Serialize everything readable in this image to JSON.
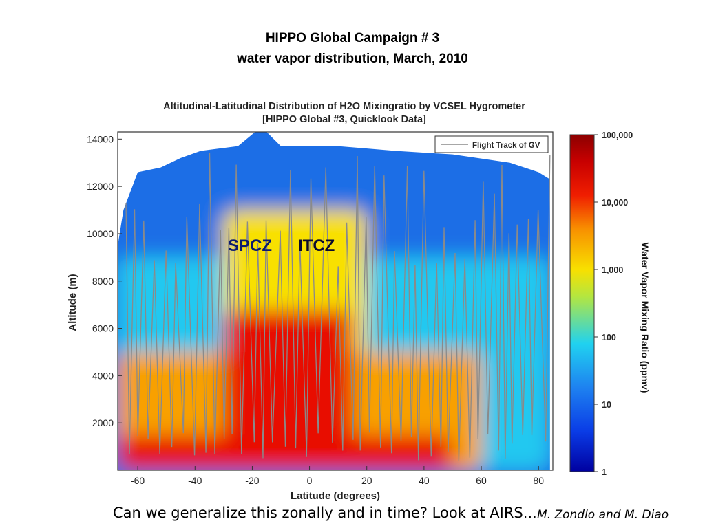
{
  "slide": {
    "title_line1": "HIPPO Global Campaign # 3",
    "title_line2": "water vapor distribution, March, 2010",
    "question": "Can we generalize this zonally and in time?  Look at AIRS...",
    "credit": "M. Zondlo and M. Diao"
  },
  "annotations": {
    "spcz": "SPCZ",
    "itcz": "ITCZ"
  },
  "colors": {
    "low": "#0000a0",
    "mid_blue": "#1e6ee6",
    "cyan": "#20c8f0",
    "yellow": "#f8e000",
    "orange": "#f8a000",
    "red": "#e81000",
    "dark_red": "#8c0000",
    "track": "#8a8a8a"
  },
  "chart_data": {
    "type": "heatmap",
    "title": "Altitudinal-Latitudinal Distribution of H2O Mixingratio by VCSEL Hygrometer",
    "subtitle": "[HIPPO Global #3, Quicklook Data]",
    "xlabel": "Latitude (degrees)",
    "ylabel": "Altitude (m)",
    "xlim": [
      -67,
      85
    ],
    "ylim": [
      0,
      14300
    ],
    "xticks": [
      "-60",
      "-40",
      "-20",
      "0",
      "20",
      "40",
      "60",
      "80"
    ],
    "xtick_values": [
      -60,
      -40,
      -20,
      0,
      20,
      40,
      60,
      80
    ],
    "yticks": [
      "2000",
      "4000",
      "6000",
      "8000",
      "10000",
      "12000",
      "14000"
    ],
    "ytick_values": [
      2000,
      4000,
      6000,
      8000,
      10000,
      12000,
      14000
    ],
    "legend": {
      "label": "Flight Track of GV",
      "placement": "top-right"
    },
    "colorbar": {
      "label": "Water Vapor Mixing Ratio (ppmv)",
      "scale": "log",
      "ticks": [
        "100,000",
        "10,000",
        "1,000",
        "100",
        "10",
        "1"
      ],
      "tick_values": [
        100000,
        10000,
        1000,
        100,
        10,
        1
      ]
    },
    "top_boundary": [
      [
        -67,
        9500
      ],
      [
        -65,
        11000
      ],
      [
        -60,
        12600
      ],
      [
        -52,
        12800
      ],
      [
        -45,
        13200
      ],
      [
        -38,
        13500
      ],
      [
        -25,
        13700
      ],
      [
        -19,
        14300
      ],
      [
        -15,
        14300
      ],
      [
        -10,
        13700
      ],
      [
        10,
        13700
      ],
      [
        30,
        13500
      ],
      [
        50,
        13350
      ],
      [
        70,
        13000
      ],
      [
        80,
        12600
      ],
      [
        84,
        12300
      ],
      [
        84,
        9500
      ]
    ],
    "bands": [
      {
        "lat_range": [
          -67,
          84
        ],
        "alt_range": [
          0,
          14300
        ],
        "ppmv": 10,
        "level": "blue"
      },
      {
        "lat_range": [
          -67,
          84
        ],
        "alt_range": [
          0,
          9000
        ],
        "ppmv": 80,
        "level": "cyan"
      },
      {
        "lat_range": [
          -30,
          20
        ],
        "alt_range": [
          0,
          11000
        ],
        "ppmv": 800,
        "level": "yellow"
      },
      {
        "lat_range": [
          -67,
          60
        ],
        "alt_range": [
          0,
          5000
        ],
        "ppmv": 1500,
        "level": "orange"
      },
      {
        "lat_range": [
          -30,
          15
        ],
        "alt_range": [
          0,
          6800
        ],
        "ppmv": 12000,
        "level": "red"
      },
      {
        "lat_range": [
          -67,
          50
        ],
        "alt_range": [
          0,
          1500
        ],
        "ppmv": 12000,
        "level": "red"
      }
    ]
  }
}
